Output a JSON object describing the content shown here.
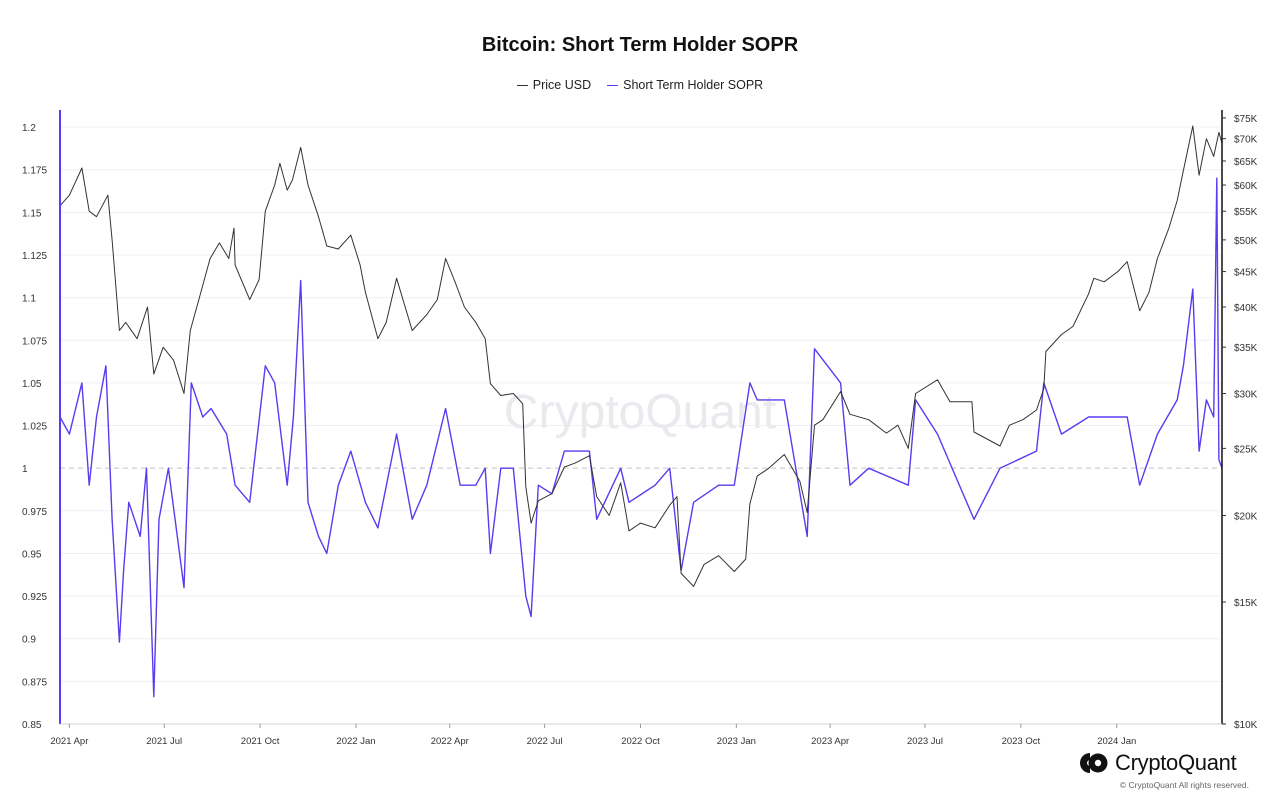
{
  "chart_data": {
    "type": "line",
    "title": "Bitcoin: Short Term Holder SOPR",
    "xlabel": "",
    "ylabel": "",
    "grid": true,
    "legend_placement": "top-center",
    "watermark": "CryptoQuant",
    "x_ticks": [
      "2021 Apr",
      "2021 Jul",
      "2021 Oct",
      "2022 Jan",
      "2022 Apr",
      "2022 Jul",
      "2022 Oct",
      "2023 Jan",
      "2023 Apr",
      "2023 Jul",
      "2023 Oct",
      "2024 Jan"
    ],
    "x_range": [
      "2021-03-23",
      "2024-04-11"
    ],
    "y_left": {
      "ylim": [
        0.85,
        1.21
      ],
      "ticks": [
        0.85,
        0.875,
        0.9,
        0.925,
        0.95,
        0.975,
        1,
        1.025,
        1.05,
        1.075,
        1.1,
        1.125,
        1.15,
        1.175,
        1.2
      ],
      "tick_labels": [
        "0.85",
        "0.875",
        "0.9",
        "0.925",
        "0.95",
        "0.975",
        "1",
        "1.025",
        "1.05",
        "1.075",
        "1.1",
        "1.125",
        "1.15",
        "1.175",
        "1.2"
      ],
      "reference_line": 1
    },
    "y_right": {
      "scale": "log",
      "ylim": [
        10000,
        77000
      ],
      "ticks": [
        10000,
        15000,
        20000,
        25000,
        30000,
        35000,
        40000,
        45000,
        50000,
        55000,
        60000,
        65000,
        70000,
        75000
      ],
      "tick_labels": [
        "$10K",
        "$15K",
        "$20K",
        "$25K",
        "$30K",
        "$35K",
        "$40K",
        "$45K",
        "$50K",
        "$55K",
        "$60K",
        "$65K",
        "$70K",
        "$75K"
      ]
    },
    "series": [
      {
        "name": "Price USD",
        "axis": "right",
        "color": "#333333",
        "points": [
          [
            "2021-03-23",
            56000
          ],
          [
            "2021-04-01",
            58000
          ],
          [
            "2021-04-13",
            63500
          ],
          [
            "2021-04-20",
            55000
          ],
          [
            "2021-04-27",
            54000
          ],
          [
            "2021-05-08",
            58000
          ],
          [
            "2021-05-12",
            50000
          ],
          [
            "2021-05-19",
            37000
          ],
          [
            "2021-05-25",
            38000
          ],
          [
            "2021-06-05",
            36000
          ],
          [
            "2021-06-15",
            40000
          ],
          [
            "2021-06-21",
            32000
          ],
          [
            "2021-06-30",
            35000
          ],
          [
            "2021-07-10",
            33500
          ],
          [
            "2021-07-20",
            30000
          ],
          [
            "2021-07-26",
            37000
          ],
          [
            "2021-08-07",
            43000
          ],
          [
            "2021-08-14",
            47000
          ],
          [
            "2021-08-23",
            49500
          ],
          [
            "2021-09-01",
            47000
          ],
          [
            "2021-09-06",
            52000
          ],
          [
            "2021-09-07",
            46000
          ],
          [
            "2021-09-21",
            41000
          ],
          [
            "2021-09-30",
            43800
          ],
          [
            "2021-10-06",
            55000
          ],
          [
            "2021-10-15",
            60000
          ],
          [
            "2021-10-20",
            64500
          ],
          [
            "2021-10-27",
            59000
          ],
          [
            "2021-11-01",
            61000
          ],
          [
            "2021-11-09",
            68000
          ],
          [
            "2021-11-16",
            60000
          ],
          [
            "2021-11-26",
            54000
          ],
          [
            "2021-12-04",
            49000
          ],
          [
            "2021-12-15",
            48500
          ],
          [
            "2021-12-27",
            50800
          ],
          [
            "2022-01-05",
            46000
          ],
          [
            "2022-01-10",
            42000
          ],
          [
            "2022-01-22",
            36000
          ],
          [
            "2022-01-30",
            38000
          ],
          [
            "2022-02-09",
            44000
          ],
          [
            "2022-02-24",
            37000
          ],
          [
            "2022-03-10",
            39000
          ],
          [
            "2022-03-20",
            41000
          ],
          [
            "2022-03-28",
            47000
          ],
          [
            "2022-04-06",
            43500
          ],
          [
            "2022-04-15",
            40000
          ],
          [
            "2022-04-26",
            38000
          ],
          [
            "2022-05-05",
            36000
          ],
          [
            "2022-05-10",
            31000
          ],
          [
            "2022-05-20",
            29800
          ],
          [
            "2022-06-01",
            30000
          ],
          [
            "2022-06-10",
            29000
          ],
          [
            "2022-06-13",
            22000
          ],
          [
            "2022-06-18",
            19500
          ],
          [
            "2022-06-25",
            21000
          ],
          [
            "2022-07-08",
            21500
          ],
          [
            "2022-07-20",
            23500
          ],
          [
            "2022-07-30",
            23800
          ],
          [
            "2022-08-13",
            24400
          ],
          [
            "2022-08-20",
            21300
          ],
          [
            "2022-09-01",
            20000
          ],
          [
            "2022-09-12",
            22300
          ],
          [
            "2022-09-20",
            19000
          ],
          [
            "2022-10-01",
            19500
          ],
          [
            "2022-10-15",
            19200
          ],
          [
            "2022-10-29",
            20700
          ],
          [
            "2022-11-05",
            21300
          ],
          [
            "2022-11-09",
            16500
          ],
          [
            "2022-11-21",
            15800
          ],
          [
            "2022-12-01",
            17000
          ],
          [
            "2022-12-15",
            17500
          ],
          [
            "2022-12-30",
            16600
          ],
          [
            "2023-01-10",
            17300
          ],
          [
            "2023-01-14",
            20800
          ],
          [
            "2023-01-21",
            22800
          ],
          [
            "2023-02-01",
            23400
          ],
          [
            "2023-02-16",
            24500
          ],
          [
            "2023-03-03",
            22400
          ],
          [
            "2023-03-10",
            20200
          ],
          [
            "2023-03-17",
            27000
          ],
          [
            "2023-03-25",
            27500
          ],
          [
            "2023-04-11",
            30200
          ],
          [
            "2023-04-20",
            28000
          ],
          [
            "2023-05-08",
            27500
          ],
          [
            "2023-05-25",
            26300
          ],
          [
            "2023-06-05",
            27000
          ],
          [
            "2023-06-15",
            25000
          ],
          [
            "2023-06-22",
            30000
          ],
          [
            "2023-07-13",
            31400
          ],
          [
            "2023-07-25",
            29200
          ],
          [
            "2023-08-15",
            29200
          ],
          [
            "2023-08-17",
            26400
          ],
          [
            "2023-09-11",
            25200
          ],
          [
            "2023-09-20",
            27000
          ],
          [
            "2023-10-03",
            27500
          ],
          [
            "2023-10-16",
            28400
          ],
          [
            "2023-10-23",
            30500
          ],
          [
            "2023-10-25",
            34500
          ],
          [
            "2023-11-09",
            36500
          ],
          [
            "2023-11-20",
            37500
          ],
          [
            "2023-12-05",
            41800
          ],
          [
            "2023-12-10",
            44000
          ],
          [
            "2023-12-20",
            43500
          ],
          [
            "2024-01-02",
            45000
          ],
          [
            "2024-01-11",
            46500
          ],
          [
            "2024-01-23",
            39500
          ],
          [
            "2024-02-01",
            42000
          ],
          [
            "2024-02-09",
            47000
          ],
          [
            "2024-02-20",
            52000
          ],
          [
            "2024-02-28",
            57000
          ],
          [
            "2024-03-05",
            63000
          ],
          [
            "2024-03-14",
            73000
          ],
          [
            "2024-03-20",
            62000
          ],
          [
            "2024-03-27",
            70000
          ],
          [
            "2024-04-03",
            66000
          ],
          [
            "2024-04-08",
            71500
          ],
          [
            "2024-04-11",
            69000
          ]
        ]
      },
      {
        "name": "Short Term Holder SOPR",
        "axis": "left",
        "color": "#5b3bf0",
        "points": [
          [
            "2021-03-23",
            1.03
          ],
          [
            "2021-04-01",
            1.02
          ],
          [
            "2021-04-13",
            1.05
          ],
          [
            "2021-04-20",
            0.99
          ],
          [
            "2021-04-27",
            1.03
          ],
          [
            "2021-05-06",
            1.06
          ],
          [
            "2021-05-12",
            0.97
          ],
          [
            "2021-05-19",
            0.898
          ],
          [
            "2021-05-23",
            0.94
          ],
          [
            "2021-05-28",
            0.98
          ],
          [
            "2021-06-08",
            0.96
          ],
          [
            "2021-06-14",
            1.0
          ],
          [
            "2021-06-21",
            0.866
          ],
          [
            "2021-06-26",
            0.97
          ],
          [
            "2021-07-05",
            1.0
          ],
          [
            "2021-07-20",
            0.93
          ],
          [
            "2021-07-27",
            1.05
          ],
          [
            "2021-08-07",
            1.03
          ],
          [
            "2021-08-15",
            1.035
          ],
          [
            "2021-08-30",
            1.02
          ],
          [
            "2021-09-07",
            0.99
          ],
          [
            "2021-09-21",
            0.98
          ],
          [
            "2021-10-06",
            1.06
          ],
          [
            "2021-10-15",
            1.05
          ],
          [
            "2021-10-27",
            0.99
          ],
          [
            "2021-11-02",
            1.03
          ],
          [
            "2021-11-09",
            1.11
          ],
          [
            "2021-11-16",
            0.98
          ],
          [
            "2021-11-26",
            0.96
          ],
          [
            "2021-12-04",
            0.95
          ],
          [
            "2021-12-15",
            0.99
          ],
          [
            "2021-12-27",
            1.01
          ],
          [
            "2022-01-10",
            0.98
          ],
          [
            "2022-01-22",
            0.965
          ],
          [
            "2022-02-09",
            1.02
          ],
          [
            "2022-02-24",
            0.97
          ],
          [
            "2022-03-10",
            0.99
          ],
          [
            "2022-03-28",
            1.035
          ],
          [
            "2022-04-11",
            0.99
          ],
          [
            "2022-04-26",
            0.99
          ],
          [
            "2022-05-05",
            1.0
          ],
          [
            "2022-05-10",
            0.95
          ],
          [
            "2022-05-20",
            1.0
          ],
          [
            "2022-06-01",
            1.0
          ],
          [
            "2022-06-13",
            0.925
          ],
          [
            "2022-06-18",
            0.913
          ],
          [
            "2022-06-25",
            0.99
          ],
          [
            "2022-07-08",
            0.985
          ],
          [
            "2022-07-20",
            1.01
          ],
          [
            "2022-08-13",
            1.01
          ],
          [
            "2022-08-20",
            0.97
          ],
          [
            "2022-09-12",
            1.0
          ],
          [
            "2022-09-20",
            0.98
          ],
          [
            "2022-10-15",
            0.99
          ],
          [
            "2022-10-29",
            1.0
          ],
          [
            "2022-11-09",
            0.94
          ],
          [
            "2022-11-21",
            0.98
          ],
          [
            "2022-12-15",
            0.99
          ],
          [
            "2022-12-30",
            0.99
          ],
          [
            "2023-01-14",
            1.05
          ],
          [
            "2023-01-21",
            1.04
          ],
          [
            "2023-02-16",
            1.04
          ],
          [
            "2023-03-10",
            0.96
          ],
          [
            "2023-03-17",
            1.07
          ],
          [
            "2023-04-11",
            1.05
          ],
          [
            "2023-04-20",
            0.99
          ],
          [
            "2023-05-08",
            1.0
          ],
          [
            "2023-06-15",
            0.99
          ],
          [
            "2023-06-22",
            1.04
          ],
          [
            "2023-07-13",
            1.02
          ],
          [
            "2023-08-17",
            0.97
          ],
          [
            "2023-09-11",
            1.0
          ],
          [
            "2023-10-16",
            1.01
          ],
          [
            "2023-10-23",
            1.05
          ],
          [
            "2023-11-09",
            1.02
          ],
          [
            "2023-12-05",
            1.03
          ],
          [
            "2024-01-11",
            1.03
          ],
          [
            "2024-01-23",
            0.99
          ],
          [
            "2024-02-09",
            1.02
          ],
          [
            "2024-02-28",
            1.04
          ],
          [
            "2024-03-05",
            1.06
          ],
          [
            "2024-03-14",
            1.105
          ],
          [
            "2024-03-20",
            1.01
          ],
          [
            "2024-03-27",
            1.04
          ],
          [
            "2024-04-03",
            1.03
          ],
          [
            "2024-04-06",
            1.17
          ],
          [
            "2024-04-08",
            1.005
          ],
          [
            "2024-04-11",
            1.0
          ]
        ]
      }
    ]
  },
  "legend": [
    {
      "label": "Price USD",
      "color": "#333333"
    },
    {
      "label": "Short Term Holder SOPR",
      "color": "#5b3bf0"
    }
  ],
  "branding": {
    "brand_name": "CryptoQuant",
    "copyright": "© CryptoQuant All rights reserved.",
    "logo_icon": "cryptoquant-logo-icon"
  }
}
